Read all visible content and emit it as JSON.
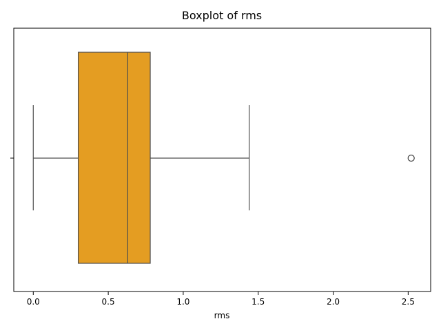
{
  "chart_data": {
    "type": "boxplot",
    "title": "Boxplot of rms",
    "xlabel": "rms",
    "ylabel": "",
    "orientation": "horizontal",
    "xlim": [
      -0.13,
      2.65
    ],
    "xticks": [
      0.0,
      0.5,
      1.0,
      1.5,
      2.0,
      2.5
    ],
    "xtick_labels": [
      "0.0",
      "0.5",
      "1.0",
      "1.5",
      "2.0",
      "2.5"
    ],
    "series": [
      {
        "whisker_low": 0.0,
        "q1": 0.3,
        "median": 0.63,
        "q3": 0.78,
        "whisker_high": 1.44,
        "outliers": [
          2.52
        ]
      }
    ],
    "grid": false,
    "legend": "none",
    "colors": {
      "box_fill": "#e49d22",
      "line": "#4d4d4d",
      "axes": "#000000",
      "outlier_edge": "#3d3d3d"
    }
  }
}
